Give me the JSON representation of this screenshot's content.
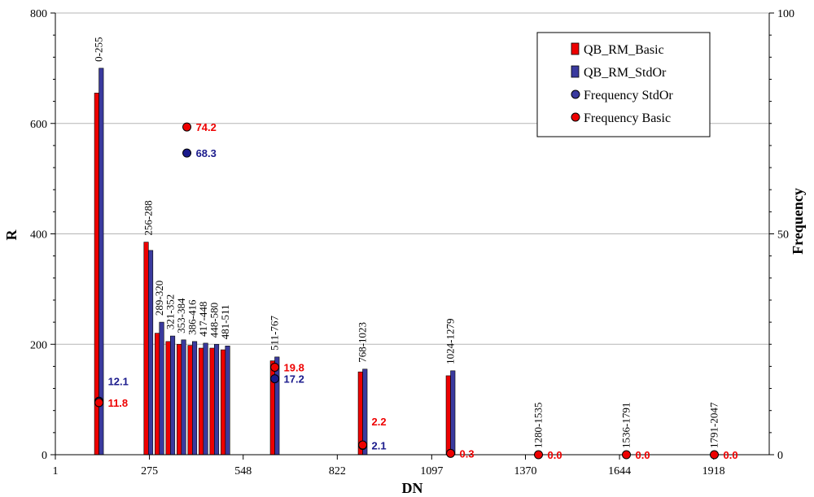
{
  "chart_data": {
    "type": "bar",
    "xlabel": "DN",
    "ylabel": "R",
    "y2label": "Frequency",
    "ylim": [
      0,
      800
    ],
    "y2lim": [
      0,
      100
    ],
    "xlim": [
      1,
      2080
    ],
    "x_ticks": [
      "1",
      "275",
      "548",
      "822",
      "1097",
      "1370",
      "1644",
      "1918"
    ],
    "y_ticks": [
      "0",
      "200",
      "400",
      "600",
      "800"
    ],
    "y2_ticks": [
      "0",
      "50",
      "100"
    ],
    "grid": "horizontal",
    "legend_position": "top-right",
    "colors": {
      "basic": "#ee0000",
      "stdor": "#3a3a9e"
    },
    "legend": [
      {
        "label": "QB_RM_Basic",
        "marker": "bar",
        "color": "#ee0000"
      },
      {
        "label": "QB_RM_StdOr",
        "marker": "bar",
        "color": "#3a3a9e"
      },
      {
        "label": "Frequency StdOr",
        "marker": "circle",
        "color": "#3a3a9e"
      },
      {
        "label": "Frequency Basic",
        "marker": "circle",
        "color": "#ee0000"
      }
    ],
    "bars": [
      {
        "label": "0-255",
        "x": 128,
        "basic": 655,
        "stdor": 700
      },
      {
        "label": "256-288",
        "x": 272,
        "basic": 385,
        "stdor": 370
      },
      {
        "label": "289-320",
        "x": 304,
        "basic": 220,
        "stdor": 240
      },
      {
        "label": "321-352",
        "x": 336,
        "basic": 205,
        "stdor": 215
      },
      {
        "label": "353-384",
        "x": 368,
        "basic": 200,
        "stdor": 208
      },
      {
        "label": "386-416",
        "x": 400,
        "basic": 198,
        "stdor": 205
      },
      {
        "label": "417-448",
        "x": 432,
        "basic": 193,
        "stdor": 202
      },
      {
        "label": "448-580",
        "x": 464,
        "basic": 193,
        "stdor": 200
      },
      {
        "label": "481-511",
        "x": 496,
        "basic": 190,
        "stdor": 197
      },
      {
        "label": "511-767",
        "x": 640,
        "basic": 170,
        "stdor": 177
      },
      {
        "label": "768-1023",
        "x": 896,
        "basic": 150,
        "stdor": 155
      },
      {
        "label": "1024-1279",
        "x": 1152,
        "basic": 143,
        "stdor": 152
      },
      {
        "label": "1280-1535",
        "x": 1408,
        "basic": 0,
        "stdor": 0
      },
      {
        "label": "1536-1791",
        "x": 1664,
        "basic": 0,
        "stdor": 0
      },
      {
        "label": "1791-2047",
        "x": 1920,
        "basic": 0,
        "stdor": 0
      }
    ],
    "frequency_stdor": [
      {
        "x": 128,
        "value": 12.1,
        "label": "12.1"
      },
      {
        "x": 384,
        "value": 68.3,
        "label": "68.3"
      },
      {
        "x": 640,
        "value": 17.2,
        "label": "17.2"
      },
      {
        "x": 896,
        "value": 2.1,
        "label": "2.1"
      }
    ],
    "frequency_basic": [
      {
        "x": 128,
        "value": 11.8,
        "label": "11.8"
      },
      {
        "x": 384,
        "value": 74.2,
        "label": "74.2"
      },
      {
        "x": 640,
        "value": 19.8,
        "label": "19.8"
      },
      {
        "x": 896,
        "value": 2.2,
        "label": "2.2"
      },
      {
        "x": 1152,
        "value": 0.3,
        "label": "0.3"
      },
      {
        "x": 1408,
        "value": 0.0,
        "label": "0.0"
      },
      {
        "x": 1664,
        "value": 0.0,
        "label": "0.0"
      },
      {
        "x": 1920,
        "value": 0.0,
        "label": "0.0"
      }
    ]
  }
}
